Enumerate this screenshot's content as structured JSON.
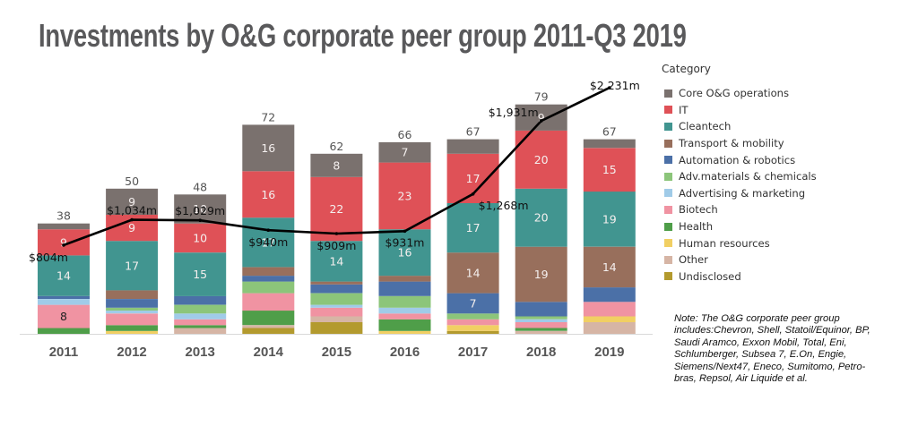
{
  "chart_data": {
    "type": "bar",
    "stacked": true,
    "title": "Investments by O&G corporate peer group 2011-Q3 2019",
    "xlabel": "",
    "ylabel": "",
    "ylim": [
      0,
      90
    ],
    "y2lim": [
      0,
      2370
    ],
    "grid": false,
    "legend": {
      "title": "Category",
      "position": "right"
    },
    "categories": [
      "2011",
      "2012",
      "2013",
      "2014",
      "2015",
      "2016",
      "2017",
      "2018",
      "2019"
    ],
    "totals": [
      "38",
      "50",
      "48",
      "72",
      "62",
      "66",
      "67",
      "79",
      "67"
    ],
    "series": [
      {
        "name": "Core O&G operations",
        "color": "#7a716e",
        "values": [
          2,
          9,
          10,
          16,
          8,
          7,
          5,
          9,
          3
        ]
      },
      {
        "name": "IT",
        "color": "#df5157",
        "values": [
          9,
          9,
          10,
          16,
          22,
          23,
          17,
          20,
          15
        ]
      },
      {
        "name": "Cleantech",
        "color": "#419590",
        "values": [
          14,
          17,
          15,
          17,
          14,
          16,
          17,
          20,
          19
        ]
      },
      {
        "name": "Transport & mobility",
        "color": "#986f5c",
        "values": [
          0,
          3,
          0,
          3,
          1,
          2,
          14,
          19,
          14
        ]
      },
      {
        "name": "Automation & robotics",
        "color": "#4b70a7",
        "values": [
          1,
          3,
          3,
          2,
          3,
          5,
          7,
          5,
          5
        ]
      },
      {
        "name": "Adv.materials & chemicals",
        "color": "#8cc57a",
        "values": [
          0,
          1,
          3,
          4,
          4,
          4,
          2,
          1,
          0
        ]
      },
      {
        "name": "Advertising & marketing",
        "color": "#a0cbe8",
        "values": [
          2,
          1,
          2,
          0,
          1,
          2,
          0,
          1,
          0
        ]
      },
      {
        "name": "Biotech",
        "color": "#f093a2",
        "values": [
          8,
          4,
          2,
          6,
          3,
          2,
          2,
          2,
          5
        ]
      },
      {
        "name": "Health",
        "color": "#4f9e49",
        "values": [
          2,
          2,
          1,
          5,
          0,
          4,
          0,
          1,
          0
        ]
      },
      {
        "name": "Human resources",
        "color": "#f1cf63",
        "values": [
          0,
          1,
          0,
          0,
          0,
          1,
          2,
          0,
          2
        ]
      },
      {
        "name": "Other",
        "color": "#d6b5a5",
        "values": [
          0,
          0,
          2,
          1,
          2,
          0,
          0,
          1,
          4
        ]
      },
      {
        "name": "Undisclosed",
        "color": "#b39a2e",
        "values": [
          0,
          0,
          0,
          2,
          4,
          0,
          1,
          0,
          0
        ]
      }
    ],
    "line": {
      "name": "Investment amount ($m)",
      "color": "#000000",
      "values": [
        804,
        1034,
        1029,
        940,
        909,
        931,
        1268,
        1931,
        2231
      ],
      "labels": [
        "$804m",
        "$1,034m",
        "$1,029m",
        "$940m",
        "$909m",
        "$931m",
        "$1,268m",
        "$1,931m",
        "$2,231m"
      ]
    },
    "note_lines": [
      "Note: The O&G corporate peer group",
      "includes:Chevron, Shell, Statoil/Equinor, BP,",
      "Saudi Aramco, Exxon Mobil, Total, Eni,",
      "Schlumberger, Subsea 7, E.On, Engie,",
      "Siemens/Next47, Eneco, Sumitomo, Petro-",
      "bras, Repsol, Air Liquide et al."
    ]
  }
}
